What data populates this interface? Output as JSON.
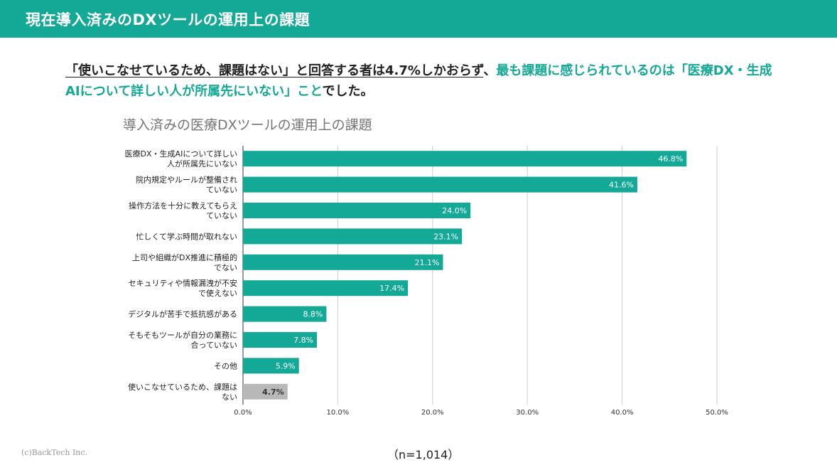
{
  "header": {
    "title": "現在導入済みのDXツールの運用上の課題"
  },
  "summary": {
    "part1": "「使いこなせているため、課題はない」と回答する者は4.7%しかおらず",
    "part2": "、",
    "part3": "最も課題に感じられているのは「医療DX・生成AIについて詳しい人が所属先にいない」こと",
    "part4": "でした。"
  },
  "chart_data": {
    "type": "bar",
    "orientation": "horizontal",
    "title": "導入済みの医療DXツールの運用上の課題",
    "categories": [
      [
        "医療DX・生成AIについて詳しい",
        "人が所属先にいない"
      ],
      [
        "院内規定やルールが整備され",
        "ていない"
      ],
      [
        "操作方法を十分に教えてもらえ",
        "ていない"
      ],
      [
        "忙しくて学ぶ時間が取れない"
      ],
      [
        "上司や組織がDX推進に積極的",
        "でない"
      ],
      [
        "セキュリティや情報漏洩が不安",
        "で使えない"
      ],
      [
        "デジタルが苦手で抵抗感がある"
      ],
      [
        "そもそもツールが自分の業務に",
        "合っていない"
      ],
      [
        "その他"
      ],
      [
        "使いこなせているため、課題は",
        "ない"
      ]
    ],
    "values": [
      46.8,
      41.6,
      24.0,
      23.1,
      21.1,
      17.4,
      8.8,
      7.8,
      5.9,
      4.7
    ],
    "value_labels": [
      "46.8%",
      "41.6%",
      "24.0%",
      "23.1%",
      "21.1%",
      "17.4%",
      "8.8%",
      "7.8%",
      "5.9%",
      "4.7%"
    ],
    "x_ticks": [
      0,
      10,
      20,
      30,
      40,
      50
    ],
    "x_tick_labels": [
      "0.0%",
      "10.0%",
      "20.0%",
      "30.0%",
      "40.0%",
      "50.0%"
    ],
    "xlim": [
      0,
      50
    ],
    "grid": true,
    "colors": {
      "default": "#14a896",
      "highlight_last": "#b8b8b8"
    }
  },
  "footer": {
    "copyright": "(c)BackTech Inc.",
    "sample": "（n=1,014）"
  }
}
